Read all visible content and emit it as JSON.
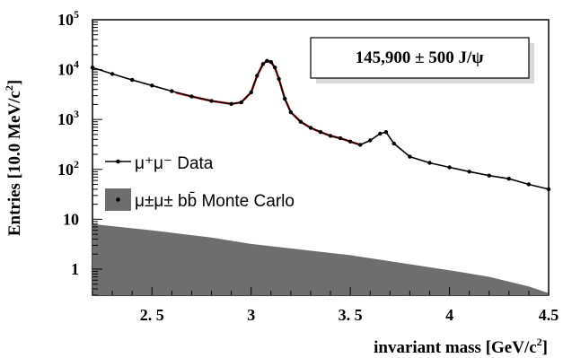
{
  "chart_data": {
    "type": "scatter",
    "xlabel": "invariant mass [GeV/c",
    "xlabel_sup": "2",
    "xlabel_close": "]",
    "ylabel": "Entries [10.0 MeV/c",
    "ylabel_sup": "2",
    "ylabel_close": "]",
    "xlim": [
      2.2,
      4.5
    ],
    "ylim": [
      0.3,
      100000
    ],
    "yscale": "log",
    "grid": false,
    "x_ticks": [
      {
        "value": 2.5,
        "label": "2. 5"
      },
      {
        "value": 3.0,
        "label": "3"
      },
      {
        "value": 3.5,
        "label": "3. 5"
      },
      {
        "value": 4.0,
        "label": "4"
      },
      {
        "value": 4.5,
        "label": "4.5"
      }
    ],
    "y_ticks": [
      {
        "value": 1,
        "base": "1",
        "exp": ""
      },
      {
        "value": 10,
        "base": "10",
        "exp": ""
      },
      {
        "value": 100,
        "base": "10",
        "exp": "2"
      },
      {
        "value": 1000,
        "base": "10",
        "exp": "3"
      },
      {
        "value": 10000,
        "base": "10",
        "exp": "4"
      },
      {
        "value": 100000,
        "base": "10",
        "exp": "5"
      }
    ],
    "annotation": "145,900 ± 500 J/ψ",
    "series": [
      {
        "name": "μ⁺μ⁻ Data",
        "kind": "points",
        "color": "#000000",
        "x": [
          2.2,
          2.3,
          2.4,
          2.5,
          2.6,
          2.7,
          2.8,
          2.9,
          2.95,
          3.0,
          3.03,
          3.06,
          3.08,
          3.1,
          3.12,
          3.14,
          3.17,
          3.2,
          3.25,
          3.3,
          3.35,
          3.4,
          3.45,
          3.5,
          3.55,
          3.6,
          3.65,
          3.68,
          3.72,
          3.8,
          3.9,
          4.0,
          4.1,
          4.2,
          4.3,
          4.4,
          4.5
        ],
        "y": [
          11000,
          8200,
          6200,
          4800,
          3700,
          2900,
          2350,
          2050,
          2200,
          3500,
          7500,
          13000,
          15000,
          14200,
          11000,
          6500,
          2600,
          1400,
          900,
          680,
          560,
          470,
          420,
          360,
          310,
          380,
          520,
          560,
          330,
          180,
          135,
          110,
          90,
          75,
          65,
          50,
          40
        ]
      },
      {
        "name": "fit",
        "kind": "curve",
        "color": "#d42020",
        "x": [
          2.62,
          2.7,
          2.8,
          2.9,
          2.95,
          3.0,
          3.03,
          3.06,
          3.08,
          3.1,
          3.12,
          3.14,
          3.17,
          3.2,
          3.25,
          3.3,
          3.35,
          3.4,
          3.45,
          3.5,
          3.55
        ],
        "y": [
          3450,
          2900,
          2350,
          2050,
          2200,
          3500,
          7500,
          13000,
          15000,
          14200,
          11000,
          6500,
          2600,
          1400,
          900,
          680,
          560,
          470,
          420,
          360,
          310
        ]
      },
      {
        "name": "μ±μ± bb̄ Monte Carlo",
        "kind": "area",
        "color": "#6e6e6e",
        "x": [
          2.2,
          2.5,
          2.8,
          3.0,
          3.2,
          3.5,
          3.8,
          4.0,
          4.2,
          4.4,
          4.5
        ],
        "y": [
          8,
          6,
          4.3,
          3.2,
          2.6,
          1.9,
          1.25,
          0.95,
          0.7,
          0.45,
          0.33
        ]
      }
    ],
    "legend": [
      {
        "label": "μ⁺μ⁻ Data",
        "marker": "line-point"
      },
      {
        "label": "μ±μ± bb̄ Monte Carlo",
        "marker": "filled-box"
      }
    ]
  }
}
